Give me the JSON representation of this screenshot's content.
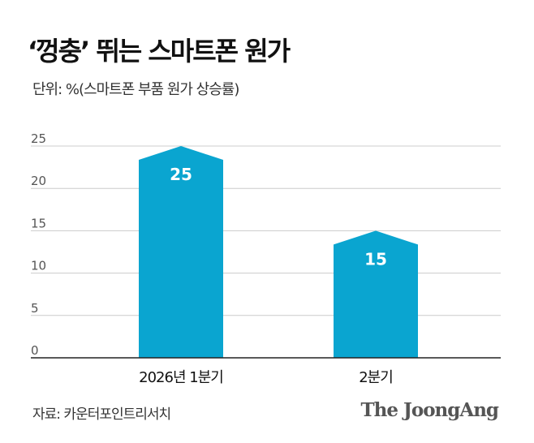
{
  "title": "‘껑충’ 뛰는 스마트폰 원가",
  "subtitle": "단위: %(스마트폰 부품 원가 상승률)",
  "source": "자료: 카운터포인트리서치",
  "logo": "The JoongAng",
  "colors": {
    "bar": "#0aa5d0",
    "grid": "#cccccc",
    "axis": "#222222"
  },
  "chart_data": {
    "type": "bar",
    "categories": [
      "2026년 1분기",
      "2분기"
    ],
    "values": [
      25,
      15
    ],
    "data_labels": [
      "25",
      "15"
    ],
    "ylim": [
      0,
      25
    ],
    "yticks": [
      "0",
      "5",
      "10",
      "15",
      "20",
      "25"
    ],
    "grid": true
  }
}
